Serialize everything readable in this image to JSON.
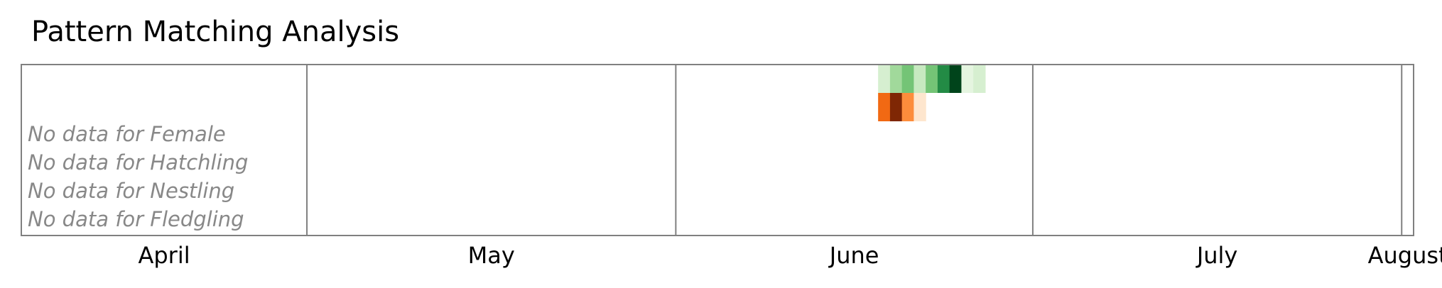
{
  "title": "Pattern Matching Analysis",
  "chart_data": {
    "type": "heatmap",
    "title": "Pattern Matching Analysis",
    "x_axis": {
      "type": "date",
      "range": [
        "2023-04-07",
        "2023-08-02"
      ],
      "tick_labels": [
        "April",
        "May",
        "June",
        "July",
        "August"
      ],
      "month_boundaries": [
        "2023-05-01",
        "2023-06-01",
        "2023-07-01",
        "2023-08-01"
      ],
      "grid": true
    },
    "rows": [
      {
        "color_scheme": "Greens",
        "cells": [
          {
            "date": "2023-06-18",
            "level": 0.2
          },
          {
            "date": "2023-06-19",
            "level": 0.35
          },
          {
            "date": "2023-06-20",
            "level": 0.35
          },
          {
            "date": "2023-06-21",
            "level": 0.5
          },
          {
            "date": "2023-06-22",
            "level": 0.25
          },
          {
            "date": "2023-06-23",
            "level": 0.5
          },
          {
            "date": "2023-06-24",
            "level": 0.8
          },
          {
            "date": "2023-06-25",
            "level": 1.0
          },
          {
            "date": "2023-06-26",
            "level": 0.15
          }
        ]
      },
      {
        "color_scheme": "Oranges",
        "cells": [
          {
            "date": "2023-06-18",
            "level": 0.75
          },
          {
            "date": "2023-06-19",
            "level": 1.0
          },
          {
            "date": "2023-06-20",
            "level": 0.65
          },
          {
            "date": "2023-06-21",
            "level": 0.2
          }
        ]
      }
    ],
    "no_data_labels": [
      "No data for Female",
      "No data for Hatchling",
      "No data for Nestling",
      "No data for Fledgling"
    ],
    "colors": {
      "frame": "#808080",
      "no_data_text": "#888888",
      "greens": [
        "#d6efd0",
        "#a1d99b",
        "#74c476",
        "#c7e9c0",
        "#74c476",
        "#238b45",
        "#00441b",
        "#e5f5e0"
      ],
      "oranges": [
        "#f16913",
        "#7f2704",
        "#fd8d3c",
        "#fee6ce"
      ]
    }
  }
}
